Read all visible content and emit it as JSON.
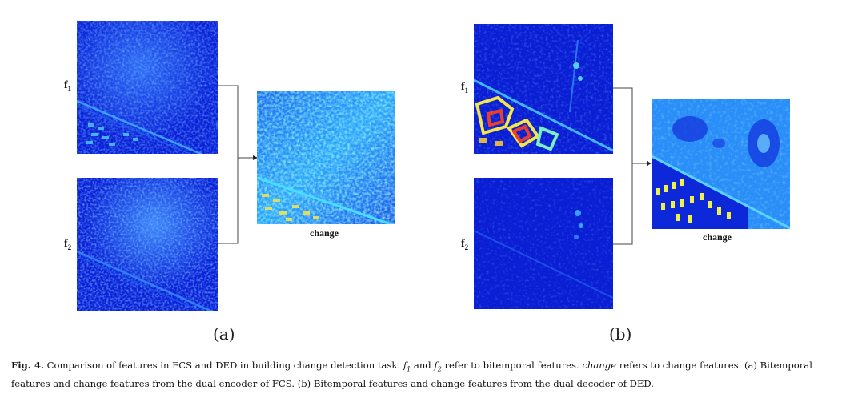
{
  "panel_a": {
    "label_f1": "f",
    "label_f1_sub": "1",
    "label_f2": "f",
    "label_f2_sub": "2",
    "label_change": "change",
    "sublabel": "(a)"
  },
  "panel_b": {
    "label_f1": "f",
    "label_f1_sub": "1",
    "label_f2": "f",
    "label_f2_sub": "2",
    "label_change": "change",
    "sublabel": "(b)"
  },
  "caption": {
    "figure_label": "Fig. 4.",
    "p1": " Comparison of features in FCS and DED in building change detection task. ",
    "f1_base": "f",
    "f1_sub": "1",
    "and": " and ",
    "f2_base": "f",
    "f2_sub": "2",
    "p2": " refer to bitemporal features. ",
    "change_word": "change",
    "p3": " refers to change features. (a) Bitemporal features and change features from the dual encoder of FCS. (b) Bitemporal features and change features from the dual decoder of DED."
  },
  "colors": {
    "deep_blue": "#0a1fd8",
    "mid_blue": "#1e5cf0",
    "light_blue": "#3aa0ff",
    "cyan": "#33e0ff",
    "yellow": "#f5e646",
    "red": "#e8402a"
  }
}
